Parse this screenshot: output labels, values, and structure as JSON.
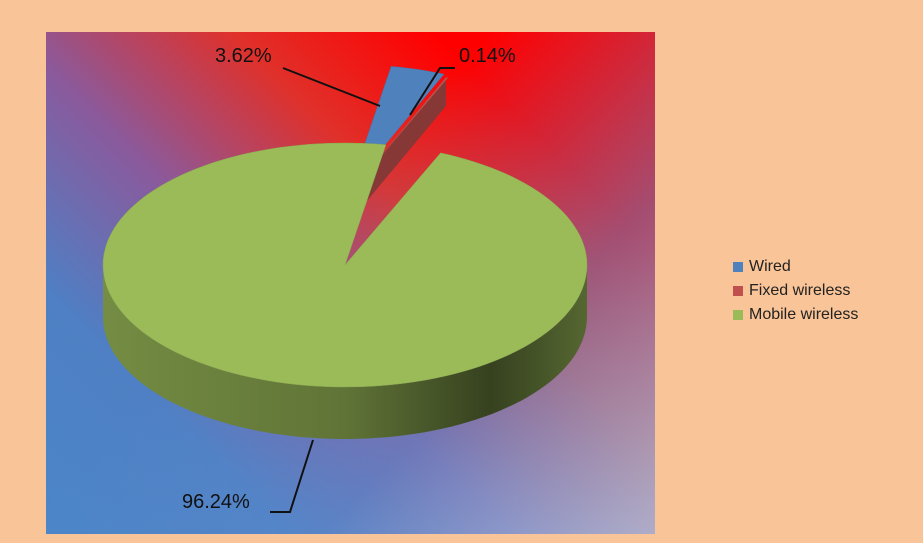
{
  "chart_data": {
    "type": "pie",
    "style": "3d",
    "series": [
      {
        "name": "Wired",
        "value": 3.62,
        "label": "3.62%",
        "color": "#4f81bd",
        "exploded": true
      },
      {
        "name": "Fixed wireless",
        "value": 0.14,
        "label": "0.14%",
        "color": "#c0504d",
        "exploded": true
      },
      {
        "name": "Mobile wireless",
        "value": 96.24,
        "label": "96.24%",
        "color": "#9bbb59",
        "exploded": false
      }
    ],
    "legend": {
      "position": "right"
    },
    "title": ""
  }
}
